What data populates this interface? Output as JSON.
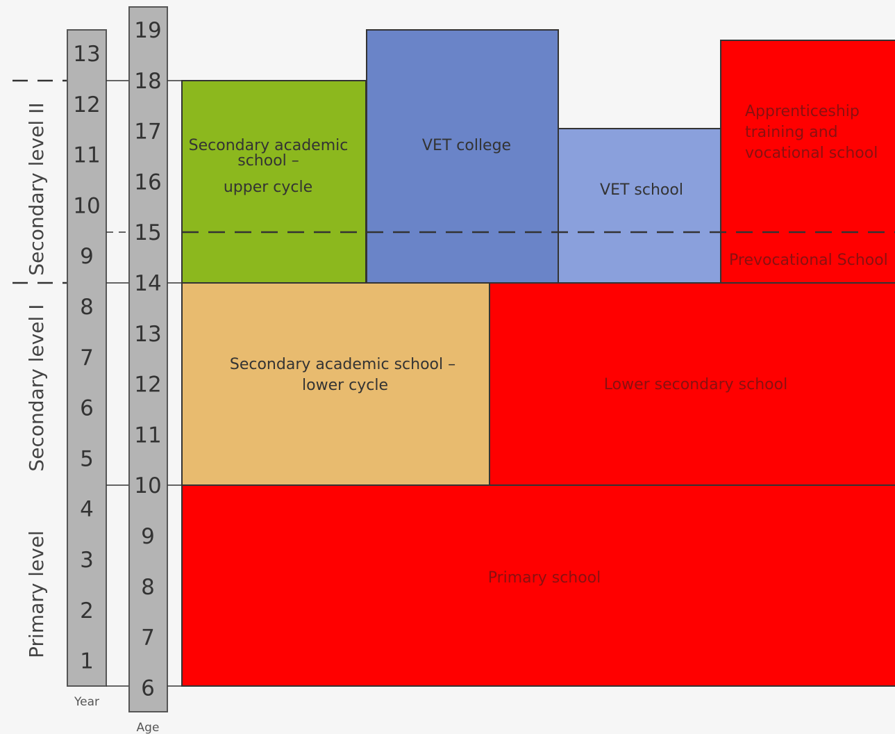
{
  "levels": [
    {
      "label": "Secondary level II"
    },
    {
      "label": "Secondary level I"
    },
    {
      "label": "Primary level"
    }
  ],
  "year_scale": {
    "caption": "Year",
    "ticks": [
      "13",
      "12",
      "11",
      "10",
      "9",
      "8",
      "7",
      "6",
      "5",
      "4",
      "3",
      "2",
      "1"
    ]
  },
  "age_scale": {
    "caption": "Age",
    "ticks": [
      "19",
      "18",
      "17",
      "16",
      "15",
      "14",
      "13",
      "12",
      "11",
      "10",
      "9",
      "8",
      "7",
      "6"
    ]
  },
  "colors": {
    "academic_upper": "#8cb81e",
    "vet_college": "#6a84c8",
    "vet_school": "#8aa0dc",
    "apprenticeship": "#ff0000",
    "academic_lower": "#e8bb6f",
    "lower_secondary": "#ff0000",
    "primary": "#ff0000",
    "scale_fill": "#b4b4b4"
  },
  "boxes": [
    {
      "id": "academic-upper",
      "lines": [
        "Secondary academic",
        "school –",
        "upper cycle"
      ]
    },
    {
      "id": "vet-college",
      "lines": [
        "VET college"
      ]
    },
    {
      "id": "vet-school",
      "lines": [
        "VET school"
      ]
    },
    {
      "id": "apprenticeship",
      "lines": [
        "Apprenticeship",
        "training and",
        "vocational school"
      ]
    },
    {
      "id": "prevocational",
      "lines": [
        "Prevocational School"
      ]
    },
    {
      "id": "academic-lower",
      "lines": [
        "Secondary academic school –",
        "lower cycle"
      ]
    },
    {
      "id": "lower-secondary",
      "lines": [
        "Lower secondary school"
      ]
    },
    {
      "id": "primary",
      "lines": [
        "Primary school"
      ]
    }
  ]
}
